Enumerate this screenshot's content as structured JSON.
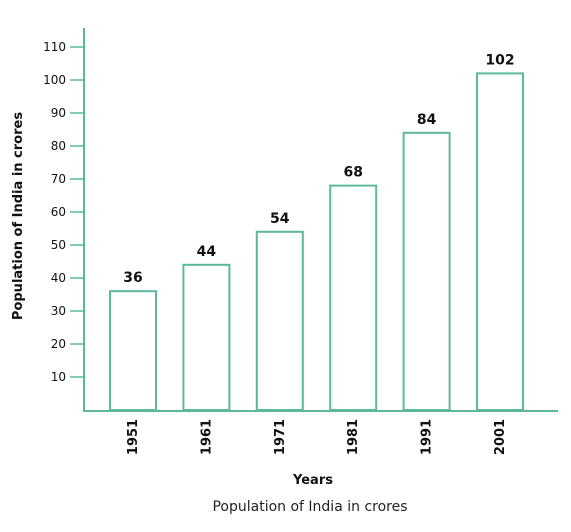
{
  "colors": {
    "accent": "#5cb89a",
    "bar_fill": "#ffffff",
    "text": "#111111"
  },
  "chart_data": {
    "type": "bar",
    "categories": [
      "1951",
      "1961",
      "1971",
      "1981",
      "1991",
      "2001"
    ],
    "values": [
      36,
      44,
      54,
      68,
      84,
      102
    ],
    "data_labels": [
      "36",
      "44",
      "54",
      "68",
      "84",
      "102"
    ],
    "xlabel": "Years",
    "ylabel": "Population of India in crores",
    "caption": "Population of India in crores",
    "ylim": [
      0,
      110
    ],
    "yticks": [
      10,
      20,
      30,
      40,
      50,
      60,
      70,
      80,
      90,
      100,
      110
    ],
    "grid": false,
    "legend": "none"
  }
}
